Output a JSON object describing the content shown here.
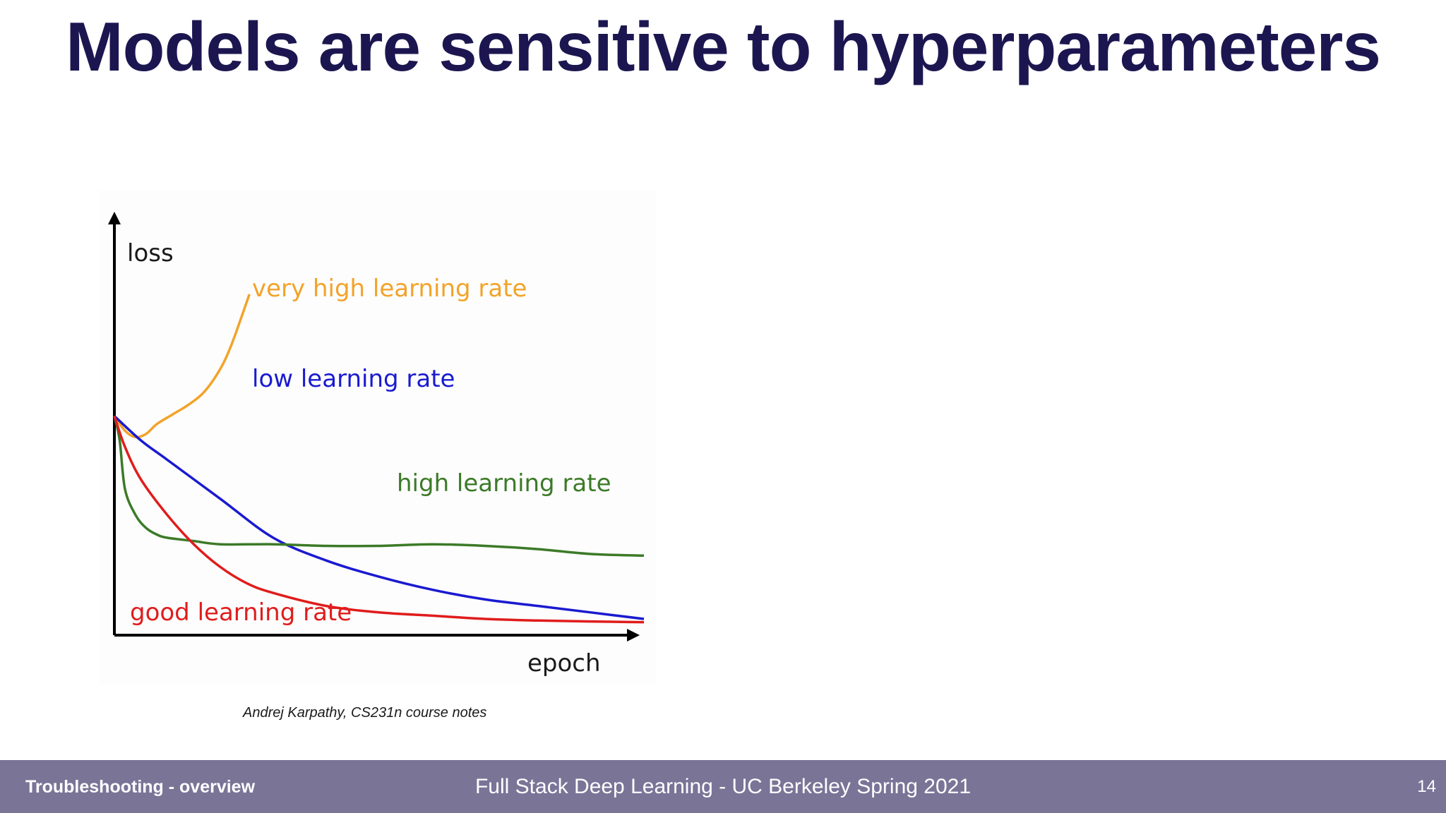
{
  "slide": {
    "title": "Models are sensitive to hyperparameters",
    "title_color": "#1c1650",
    "caption": "Andrej Karpathy, CS231n course notes"
  },
  "footer": {
    "section": "Troubleshooting - overview",
    "course": "Full Stack Deep Learning - UC Berkeley Spring 2021",
    "page_number": "14",
    "background_color": "#7a7497"
  },
  "chart_data": {
    "type": "line",
    "title": "",
    "xlabel": "epoch",
    "ylabel": "loss",
    "xlim": [
      0,
      100
    ],
    "ylim": [
      0,
      100
    ],
    "grid": false,
    "axis_ticks": false,
    "legend": "inline labels next to each curve",
    "series": [
      {
        "name": "very high learning rate",
        "color": "#f2a32a",
        "x": [
          0,
          2,
          4,
          6,
          8,
          11,
          14,
          17,
          20,
          22,
          24,
          25.5
        ],
        "y": [
          67.5,
          63,
          61,
          62,
          65,
          68,
          71,
          75,
          82,
          89,
          98,
          105
        ]
      },
      {
        "name": "low learning rate",
        "color": "#1a1ad0",
        "x": [
          0,
          5,
          10,
          20,
          30,
          40,
          50,
          60,
          70,
          80,
          90,
          100
        ],
        "y": [
          67.5,
          60,
          54,
          42,
          30,
          23,
          18,
          14,
          11,
          9,
          7,
          5
        ]
      },
      {
        "name": "high learning rate",
        "color": "#3c7a28",
        "x": [
          0,
          1,
          2,
          4,
          6,
          8,
          10,
          15,
          20,
          30,
          40,
          50,
          60,
          70,
          80,
          90,
          100
        ],
        "y": [
          67.5,
          60,
          45,
          37,
          33,
          31,
          30,
          29,
          28,
          28,
          27.5,
          27.5,
          28,
          27.5,
          26.5,
          25,
          24.5
        ]
      },
      {
        "name": "good learning rate",
        "color": "#e01c1c",
        "x": [
          0,
          2,
          5,
          10,
          15,
          20,
          25,
          30,
          40,
          50,
          60,
          70,
          80,
          90,
          100
        ],
        "y": [
          67.5,
          58,
          48,
          37,
          28,
          21,
          16,
          13,
          9,
          7,
          6,
          5,
          4.5,
          4.2,
          4
        ]
      }
    ]
  }
}
